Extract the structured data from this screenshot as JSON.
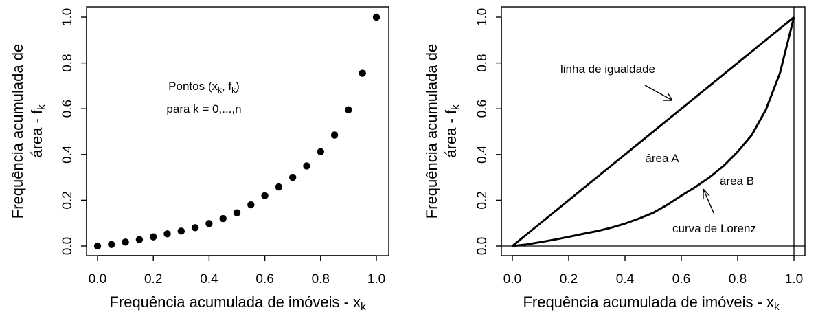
{
  "chart_data": [
    {
      "type": "scatter",
      "title": "",
      "xlabel": "Frequência acumulada de imóveis - x",
      "xlabel_sub": "k",
      "ylabel_line1": "Frequência acumulada de",
      "ylabel_line2": "área - f",
      "ylabel_sub": "k",
      "xlim": [
        0,
        1
      ],
      "ylim": [
        0,
        1
      ],
      "xticks": [
        "0.0",
        "0.2",
        "0.4",
        "0.6",
        "0.8",
        "1.0"
      ],
      "yticks": [
        "0.0",
        "0.2",
        "0.4",
        "0.6",
        "0.8",
        "1.0"
      ],
      "grid": false,
      "box": true,
      "annotation": {
        "line1_pre": "Pontos (x",
        "line1_sub1": "k",
        "line1_mid": ", f",
        "line1_sub2": "k",
        "line1_post": ")",
        "line2": "para k = 0,...,n"
      },
      "x": [
        0.0,
        0.05,
        0.1,
        0.15,
        0.2,
        0.25,
        0.3,
        0.35,
        0.4,
        0.45,
        0.5,
        0.55,
        0.6,
        0.65,
        0.7,
        0.75,
        0.8,
        0.85,
        0.9,
        0.95,
        1.0
      ],
      "y": [
        0.0,
        0.007,
        0.017,
        0.028,
        0.04,
        0.053,
        0.065,
        0.08,
        0.098,
        0.12,
        0.145,
        0.18,
        0.22,
        0.258,
        0.3,
        0.35,
        0.412,
        0.485,
        0.595,
        0.755,
        1.0
      ]
    },
    {
      "type": "line",
      "title": "",
      "xlabel": "Frequência acumulada de imóveis - x",
      "xlabel_sub": "k",
      "ylabel_line1": "Frequência acumulada de",
      "ylabel_line2": "área - f",
      "ylabel_sub": "k",
      "xlim": [
        0,
        1
      ],
      "ylim": [
        0,
        1
      ],
      "xticks": [
        "0.0",
        "0.2",
        "0.4",
        "0.6",
        "0.8",
        "1.0"
      ],
      "yticks": [
        "0.0",
        "0.2",
        "0.4",
        "0.6",
        "0.8",
        "1.0"
      ],
      "grid": false,
      "box": true,
      "reference_lines": {
        "h": 0,
        "v": 1
      },
      "labels": {
        "equality": "linha de igualdade",
        "area_a": "área A",
        "area_b": "área B",
        "lorenz": "curva de Lorenz"
      },
      "series": [
        {
          "x": [
            0,
            1
          ],
          "y": [
            0,
            1
          ]
        },
        {
          "x": [
            0.0,
            0.05,
            0.1,
            0.15,
            0.2,
            0.25,
            0.3,
            0.35,
            0.4,
            0.45,
            0.5,
            0.55,
            0.6,
            0.65,
            0.7,
            0.75,
            0.8,
            0.85,
            0.9,
            0.95,
            1.0
          ],
          "y": [
            0.0,
            0.007,
            0.017,
            0.028,
            0.04,
            0.053,
            0.065,
            0.08,
            0.098,
            0.12,
            0.145,
            0.18,
            0.22,
            0.258,
            0.3,
            0.35,
            0.412,
            0.485,
            0.595,
            0.755,
            1.0
          ]
        }
      ]
    }
  ]
}
